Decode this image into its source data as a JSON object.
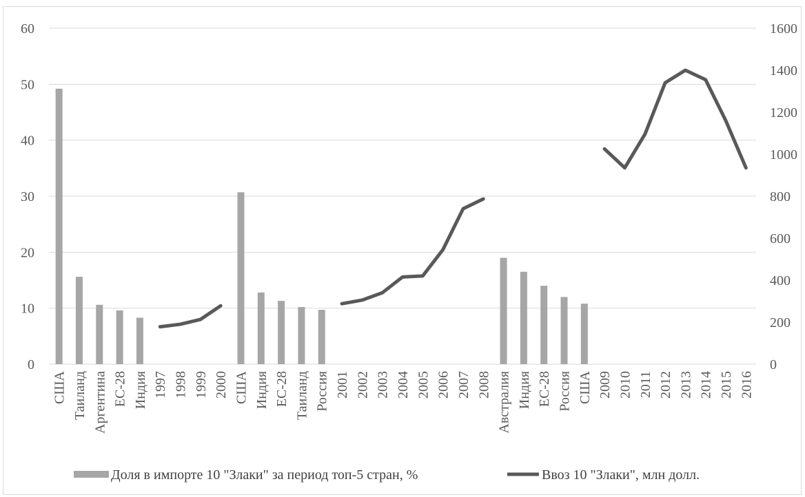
{
  "chart_data": {
    "type": "bar",
    "categories": [
      "США",
      "Таиланд",
      "Аргентина",
      "ЕС-28",
      "Индия",
      "1997",
      "1998",
      "1999",
      "2000",
      "США",
      "Индия",
      "ЕС-28",
      "Таиланд",
      "Россия",
      "2001",
      "2002",
      "2003",
      "2004",
      "2005",
      "2006",
      "2007",
      "2008",
      "Австралия",
      "Индия",
      "ЕС-28",
      "Россия",
      "США",
      "2009",
      "2010",
      "2011",
      "2012",
      "2013",
      "2014",
      "2015",
      "2016"
    ],
    "series": [
      {
        "name": "Доля  в импорте 10 \"Злаки\" за период топ-5 стран,  %",
        "type": "bar",
        "axis": "left",
        "color": "#a6a6a6",
        "values": [
          49.2,
          15.6,
          10.6,
          9.6,
          8.3,
          null,
          null,
          null,
          null,
          30.7,
          12.8,
          11.3,
          10.2,
          9.7,
          null,
          null,
          null,
          null,
          null,
          null,
          null,
          null,
          19.0,
          16.5,
          14.0,
          12.0,
          10.8,
          null,
          null,
          null,
          null,
          null,
          null,
          null,
          null
        ]
      },
      {
        "name": "Ввоз 10 \"Злаки\", млн долл.",
        "type": "line",
        "axis": "right",
        "color": "#595959",
        "values": [
          null,
          null,
          null,
          null,
          null,
          178,
          190,
          213,
          278,
          null,
          null,
          null,
          null,
          null,
          288,
          305,
          340,
          415,
          420,
          545,
          740,
          787,
          null,
          null,
          null,
          null,
          null,
          1025,
          935,
          1095,
          1340,
          1400,
          1355,
          1160,
          935
        ]
      }
    ],
    "y_left": {
      "ylim": [
        0,
        60
      ],
      "ticks": [
        "0",
        "10",
        "20",
        "30",
        "40",
        "50",
        "60"
      ]
    },
    "y_right": {
      "ylim": [
        0,
        1600
      ],
      "ticks": [
        "0",
        "200",
        "400",
        "600",
        "800",
        "1000",
        "1200",
        "1400",
        "1600"
      ]
    },
    "grid": true,
    "legend_position": "bottom"
  }
}
